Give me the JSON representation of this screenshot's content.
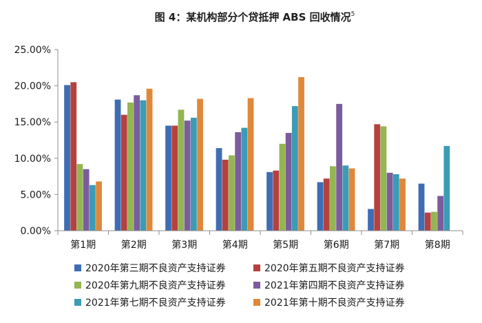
{
  "chart_data": {
    "type": "bar",
    "title": "图 4：某机构部分个贷抵押 ABS 回收情况",
    "title_superscript": "5",
    "xlabel": "",
    "ylabel": "",
    "categories": [
      "第1期",
      "第2期",
      "第3期",
      "第4期",
      "第5期",
      "第6期",
      "第7期",
      "第8期"
    ],
    "ylim": [
      0,
      25
    ],
    "y_ticks": [
      "0.00%",
      "5.00%",
      "10.00%",
      "15.00%",
      "20.00%",
      "25.00%"
    ],
    "y_unit": "%",
    "grid": false,
    "legend_position": "bottom",
    "series": [
      {
        "name": "2020年第三期不良资产支持证券",
        "color": "#3f6db3",
        "values": [
          20.1,
          18.1,
          14.5,
          11.4,
          8.1,
          6.7,
          3.0,
          6.5
        ]
      },
      {
        "name": "2020年第五期不良资产支持证券",
        "color": "#b5413e",
        "values": [
          20.5,
          16.0,
          14.5,
          9.8,
          8.3,
          7.2,
          14.7,
          2.5
        ]
      },
      {
        "name": "2020年第九期不良资产支持证券",
        "color": "#93b552",
        "values": [
          9.2,
          17.7,
          16.7,
          10.4,
          12.0,
          8.9,
          14.4,
          2.6
        ]
      },
      {
        "name": "2021年第四期不良资产支持证券",
        "color": "#7b5c9d",
        "values": [
          8.5,
          18.7,
          15.2,
          13.6,
          13.5,
          17.5,
          8.0,
          4.8
        ]
      },
      {
        "name": "2021年第七期不良资产支持证券",
        "color": "#3c9bb5",
        "values": [
          6.3,
          18.0,
          15.6,
          14.2,
          17.2,
          9.0,
          7.8,
          11.7
        ]
      },
      {
        "name": "2021年第十期不良资产支持证券",
        "color": "#e0883a",
        "values": [
          6.8,
          19.6,
          18.2,
          18.3,
          21.2,
          8.6,
          7.2,
          0
        ]
      }
    ]
  }
}
